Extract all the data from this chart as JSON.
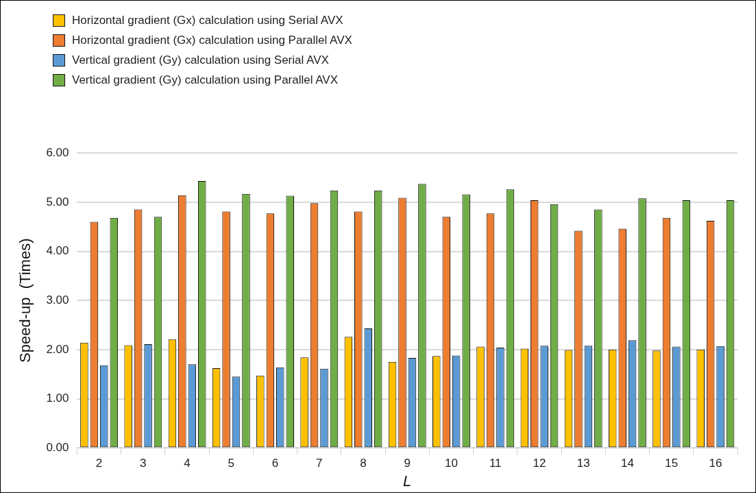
{
  "chart_data": {
    "type": "bar",
    "xlabel": "L",
    "ylabel": "Speed-up  (Times)",
    "categories": [
      "2",
      "3",
      "4",
      "5",
      "6",
      "7",
      "8",
      "9",
      "10",
      "11",
      "12",
      "13",
      "14",
      "15",
      "16"
    ],
    "series": [
      {
        "name": "Horizontal gradient (Gx) calculation using Serial AVX",
        "color": "#ffc000",
        "values": [
          2.14,
          2.09,
          2.21,
          1.62,
          1.47,
          1.84,
          2.26,
          1.75,
          1.87,
          2.06,
          2.02,
          1.99,
          2.0,
          1.98,
          2.0
        ]
      },
      {
        "name": "Horizontal gradient (Gx) calculation using Parallel AVX",
        "color": "#ed7d31",
        "values": [
          4.6,
          4.85,
          5.14,
          4.81,
          4.77,
          4.98,
          4.81,
          5.09,
          4.7,
          4.77,
          5.04,
          4.42,
          4.46,
          4.68,
          4.62
        ]
      },
      {
        "name": "Vertical gradient (Gy) calculation using Serial AVX",
        "color": "#5b9bd5",
        "values": [
          1.68,
          2.11,
          1.7,
          1.45,
          1.64,
          1.61,
          2.43,
          1.83,
          1.88,
          2.04,
          2.08,
          2.08,
          2.19,
          2.06,
          2.07
        ]
      },
      {
        "name": "Vertical gradient (Gy) calculation using Parallel AVX",
        "color": "#70ad47",
        "values": [
          4.68,
          4.7,
          5.43,
          5.17,
          5.13,
          5.24,
          5.24,
          5.37,
          5.16,
          5.26,
          4.96,
          4.85,
          5.08,
          5.04,
          5.04
        ]
      }
    ],
    "ylim": [
      0,
      6
    ],
    "yticks": [
      {
        "value": 0,
        "label": "0.00"
      },
      {
        "value": 1,
        "label": "1.00"
      },
      {
        "value": 2,
        "label": "2.00"
      },
      {
        "value": 3,
        "label": "3.00"
      },
      {
        "value": 4,
        "label": "4.00"
      },
      {
        "value": 5,
        "label": "5.00"
      },
      {
        "value": 6,
        "label": "6.00"
      }
    ],
    "grid": "y",
    "legend": "top left"
  }
}
